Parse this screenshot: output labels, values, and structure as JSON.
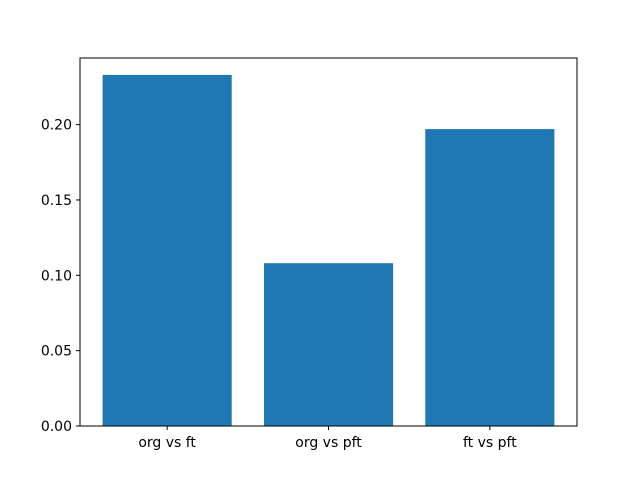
{
  "chart_data": {
    "type": "bar",
    "title": "",
    "xlabel": "",
    "ylabel": "",
    "categories": [
      "org vs ft",
      "org vs pft",
      "ft vs pft"
    ],
    "values": [
      0.233,
      0.108,
      0.197
    ],
    "yticks": [
      0.0,
      0.05,
      0.1,
      0.15,
      0.2
    ],
    "ytick_labels": [
      "0.00",
      "0.05",
      "0.10",
      "0.15",
      "0.20"
    ],
    "ylim": [
      0,
      0.2442
    ],
    "xlim": [
      -0.54,
      2.54
    ],
    "bar_width": 0.8,
    "grid": false,
    "legend": null,
    "bar_color": "#1f77b4",
    "axis_color": "#000000",
    "background_color": "#ffffff"
  }
}
